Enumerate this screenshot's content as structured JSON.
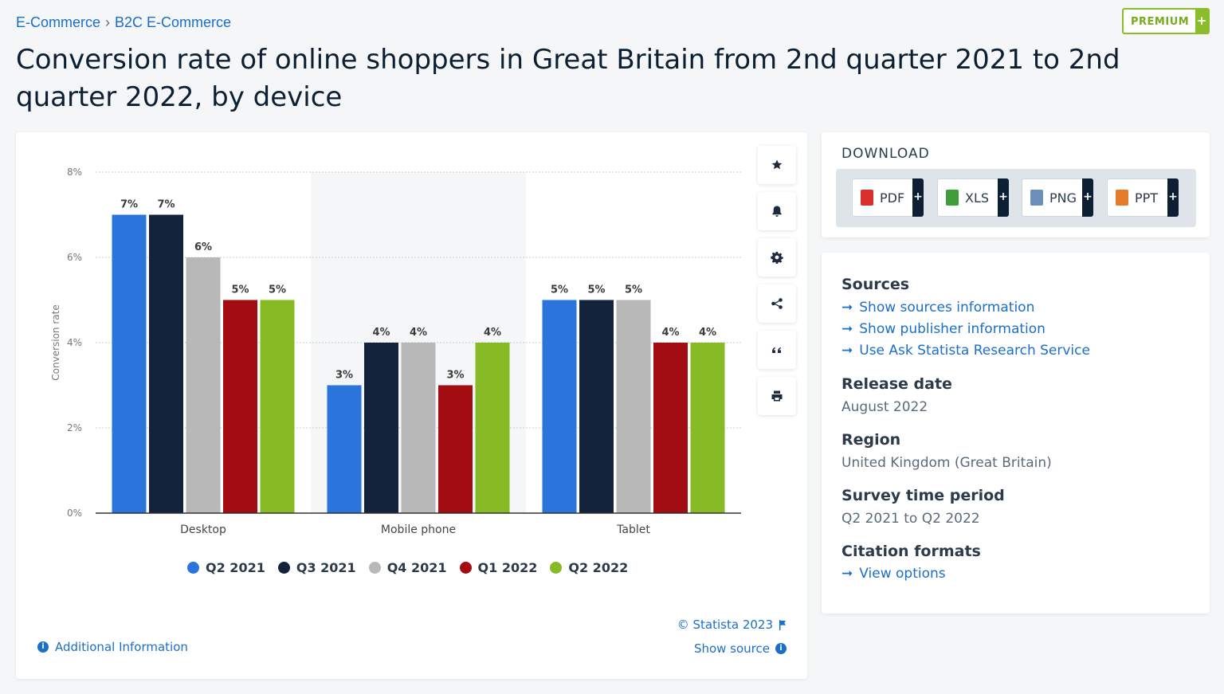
{
  "breadcrumb": {
    "item1": "E-Commerce",
    "separator": "›",
    "item2": "B2C E-Commerce"
  },
  "premium": {
    "label": "PREMIUM",
    "plus": "+"
  },
  "title": "Conversion rate of online shoppers in Great Britain from 2nd quarter 2021 to 2nd quarter 2022, by device",
  "toolbar": {
    "icons": [
      "star-icon",
      "bell-icon",
      "gear-icon",
      "share-icon",
      "quote-icon",
      "print-icon"
    ]
  },
  "chart_data": {
    "type": "bar",
    "categories": [
      "Desktop",
      "Mobile phone",
      "Tablet"
    ],
    "series": [
      {
        "name": "Q2 2021",
        "color": "#2a74dc",
        "values": [
          7,
          3,
          5
        ],
        "labels": [
          "7%",
          "3%",
          "5%"
        ]
      },
      {
        "name": "Q3 2021",
        "color": "#12233b",
        "values": [
          7,
          4,
          5
        ],
        "labels": [
          "7%",
          "4%",
          "5%"
        ]
      },
      {
        "name": "Q4 2021",
        "color": "#b8b8b8",
        "values": [
          6,
          4,
          5
        ],
        "labels": [
          "6%",
          "4%",
          "5%"
        ]
      },
      {
        "name": "Q1 2022",
        "color": "#a30d12",
        "values": [
          5,
          3,
          4
        ],
        "labels": [
          "5%",
          "3%",
          "4%"
        ]
      },
      {
        "name": "Q2 2022",
        "color": "#86bb25",
        "values": [
          5,
          4,
          4
        ],
        "labels": [
          "5%",
          "4%",
          "4%"
        ]
      }
    ],
    "ylabel": "Conversion rate",
    "ylim": [
      0,
      8
    ],
    "yticks": [
      "0%",
      "2%",
      "4%",
      "6%",
      "8%"
    ],
    "grid": true,
    "legend": "bottom"
  },
  "footer": {
    "credit": "© Statista 2023",
    "show_source": "Show source",
    "additional_info": "Additional Information"
  },
  "download": {
    "title": "DOWNLOAD",
    "buttons": [
      {
        "label": "PDF",
        "color": "#d9302c"
      },
      {
        "label": "XLS",
        "color": "#3f9d3a"
      },
      {
        "label": "PNG",
        "color": "#6b8fb8"
      },
      {
        "label": "PPT",
        "color": "#e77b2b"
      }
    ],
    "plus": "+"
  },
  "info": {
    "sources_heading": "Sources",
    "links": [
      "Show sources information",
      "Show publisher information",
      "Use Ask Statista Research Service"
    ],
    "release_heading": "Release date",
    "release_value": "August 2022",
    "region_heading": "Region",
    "region_value": "United Kingdom (Great Britain)",
    "period_heading": "Survey time period",
    "period_value": "Q2 2021 to Q2 2022",
    "citation_heading": "Citation formats",
    "citation_link": "View options"
  },
  "colors": {
    "accent": "#1a6ecc",
    "premium": "#8bbd2a"
  }
}
